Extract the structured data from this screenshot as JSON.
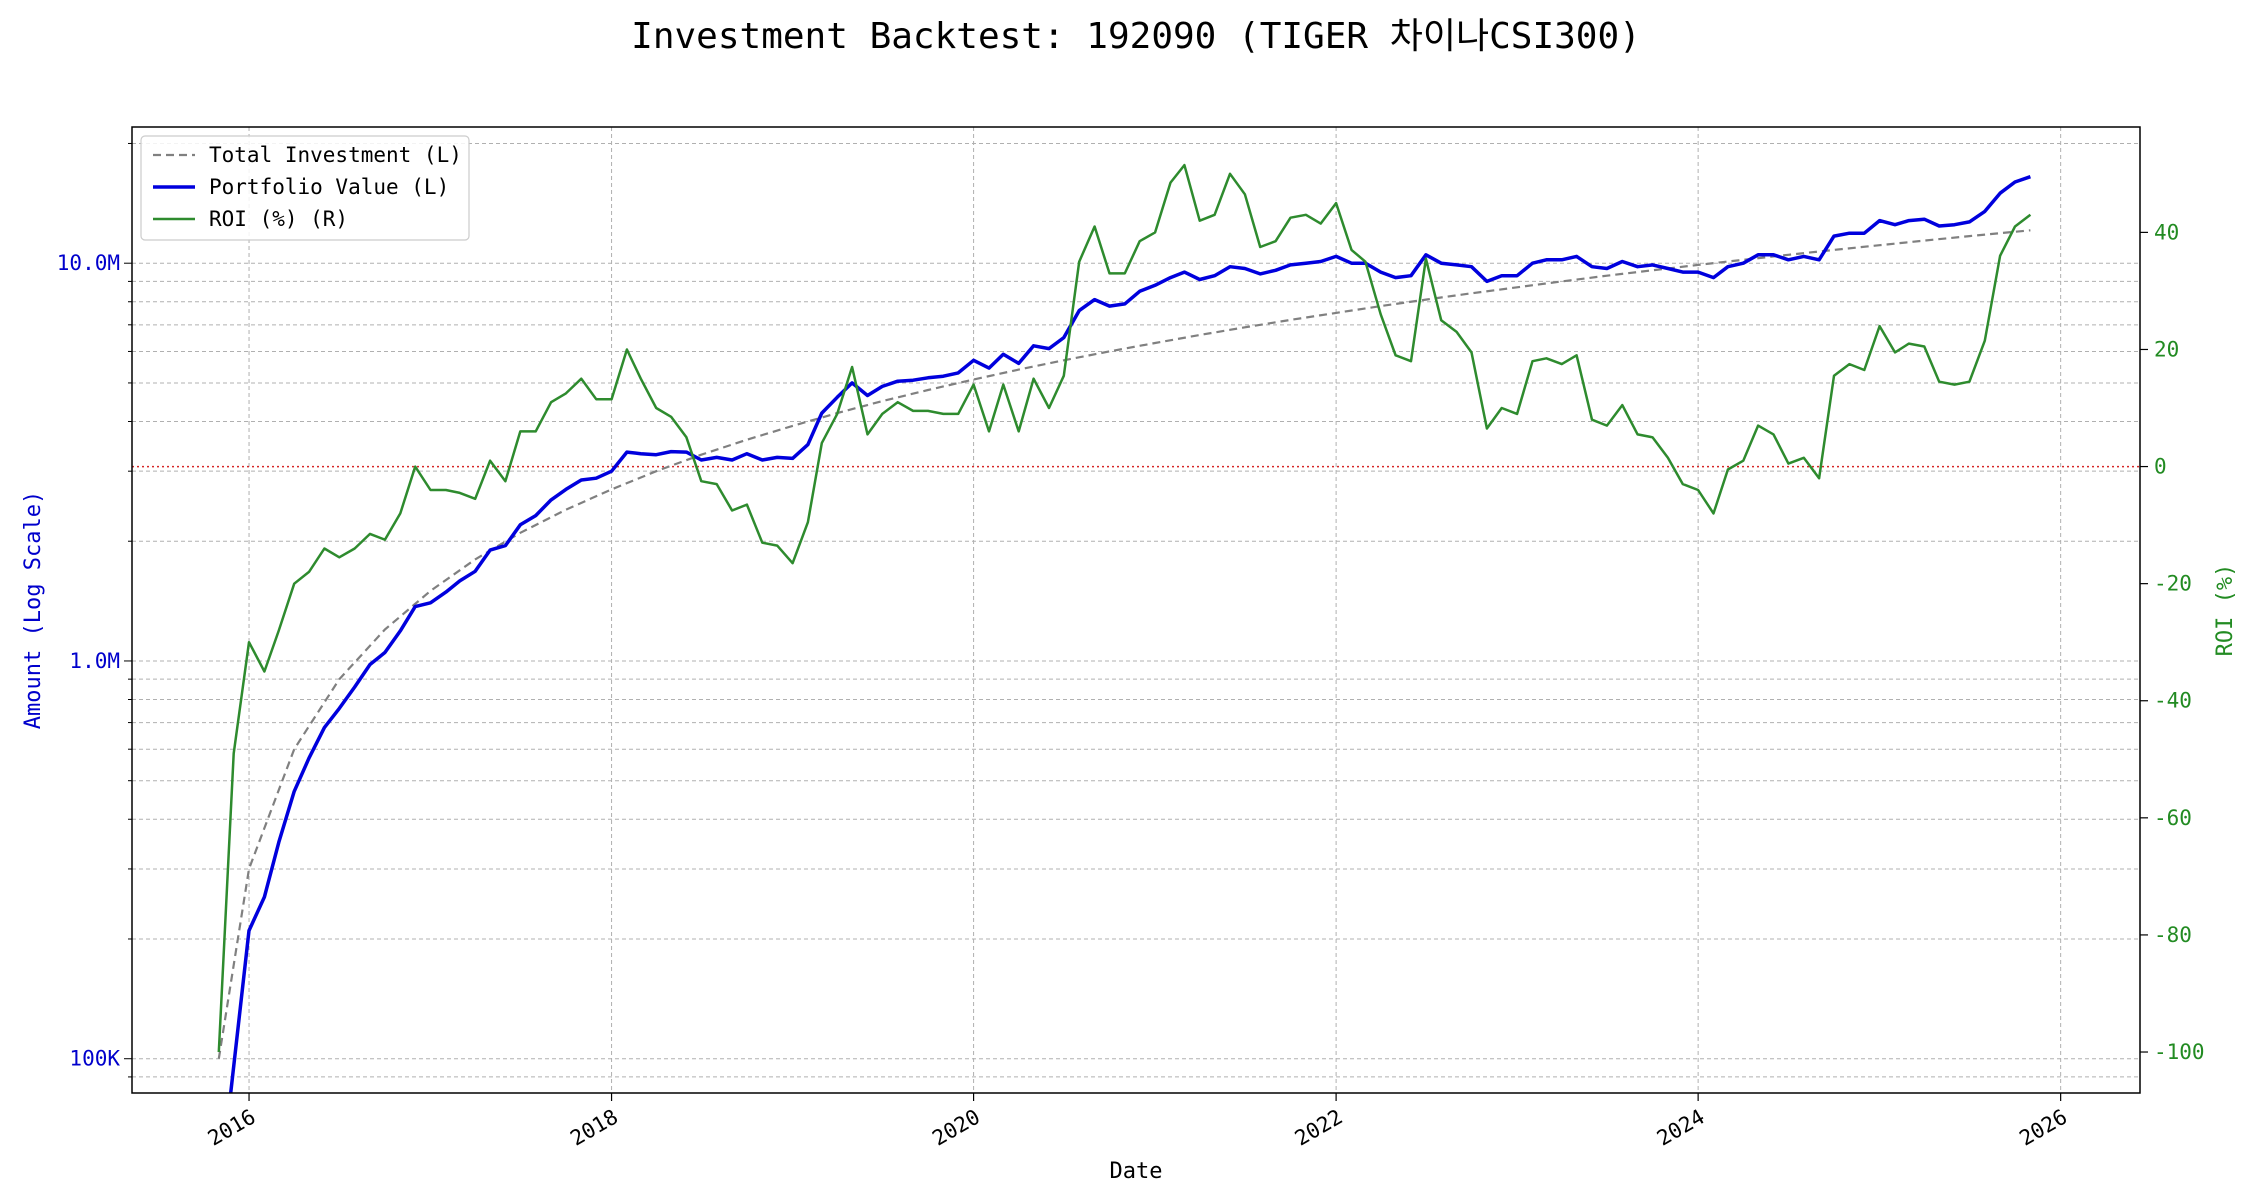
{
  "chart_data": {
    "type": "line",
    "title": "Investment Backtest: 192090 (TIGER 차이나CSI300)",
    "xlabel": "Date",
    "ylabel_left": "Amount (Log Scale)",
    "ylabel_right": "ROI (%)",
    "x_ticks": [
      "2016",
      "2018",
      "2020",
      "2022",
      "2024",
      "2026"
    ],
    "y_left_ticks": [
      "100K",
      "1.0M",
      "10.0M"
    ],
    "y_right_ticks": [
      "-100",
      "-80",
      "-60",
      "-40",
      "-20",
      "0",
      "20",
      "40"
    ],
    "x_range": [
      "2015-05-10",
      "2026-06-10"
    ],
    "y_left_range": [
      82000,
      22000000
    ],
    "y_left_scale": "log",
    "y_right_range": [
      -107,
      58
    ],
    "grid": true,
    "legend_position": "top-left",
    "reference_line": {
      "axis": "right",
      "value": 0,
      "color": "#d62728",
      "style": "dotted"
    },
    "colors": {
      "left_axis": "#0000cc",
      "right_axis": "#228b22",
      "grid": "#b0b0b0"
    },
    "series": [
      {
        "name": "Total Investment (L)",
        "axis": "left",
        "color": "#808080",
        "style": "dashed",
        "x": [
          "2015-11-01",
          "2016-01-01",
          "2016-04-01",
          "2016-07-01",
          "2016-10-01",
          "2017-01-01",
          "2017-04-01",
          "2017-07-01",
          "2017-10-01",
          "2018-01-01",
          "2018-04-01",
          "2018-07-01",
          "2018-10-01",
          "2019-01-01",
          "2019-04-01",
          "2019-07-01",
          "2019-10-01",
          "2020-01-01",
          "2020-04-01",
          "2020-07-01",
          "2020-10-01",
          "2021-01-01",
          "2021-04-01",
          "2021-07-01",
          "2021-10-01",
          "2022-01-01",
          "2022-04-01",
          "2022-07-01",
          "2022-10-01",
          "2023-01-01",
          "2023-04-01",
          "2023-07-01",
          "2023-10-01",
          "2024-01-01",
          "2024-04-01",
          "2024-07-01",
          "2024-10-01",
          "2025-01-01",
          "2025-04-01",
          "2025-07-01",
          "2025-11-01"
        ],
        "values": [
          100000,
          300000,
          600000,
          900000,
          1200000,
          1500000,
          1800000,
          2100000,
          2400000,
          2700000,
          3000000,
          3300000,
          3600000,
          3900000,
          4200000,
          4500000,
          4800000,
          5100000,
          5400000,
          5700000,
          6000000,
          6300000,
          6600000,
          6900000,
          7200000,
          7500000,
          7800000,
          8100000,
          8400000,
          8700000,
          9000000,
          9300000,
          9600000,
          9900000,
          10200000,
          10500000,
          10800000,
          11100000,
          11400000,
          11700000,
          12100000
        ]
      },
      {
        "name": "Portfolio Value (L)",
        "axis": "left",
        "color": "#0000dd",
        "style": "solid",
        "x": [
          "2015-11-25",
          "2016-01-01",
          "2016-02-01",
          "2016-03-01",
          "2016-04-01",
          "2016-05-01",
          "2016-06-01",
          "2016-07-01",
          "2016-08-01",
          "2016-09-01",
          "2016-10-01",
          "2016-11-01",
          "2016-12-01",
          "2017-01-01",
          "2017-02-01",
          "2017-03-01",
          "2017-04-01",
          "2017-05-01",
          "2017-06-01",
          "2017-07-01",
          "2017-08-01",
          "2017-09-01",
          "2017-10-01",
          "2017-11-01",
          "2017-12-01",
          "2018-01-01",
          "2018-02-01",
          "2018-03-01",
          "2018-04-01",
          "2018-05-01",
          "2018-06-01",
          "2018-07-01",
          "2018-08-01",
          "2018-09-01",
          "2018-10-01",
          "2018-11-01",
          "2018-12-01",
          "2019-01-01",
          "2019-02-01",
          "2019-03-01",
          "2019-04-01",
          "2019-05-01",
          "2019-06-01",
          "2019-07-01",
          "2019-08-01",
          "2019-09-01",
          "2019-10-01",
          "2019-11-01",
          "2019-12-01",
          "2020-01-01",
          "2020-02-01",
          "2020-03-01",
          "2020-04-01",
          "2020-05-01",
          "2020-06-01",
          "2020-07-01",
          "2020-08-01",
          "2020-09-01",
          "2020-10-01",
          "2020-11-01",
          "2020-12-01",
          "2021-01-01",
          "2021-02-01",
          "2021-03-01",
          "2021-04-01",
          "2021-05-01",
          "2021-06-01",
          "2021-07-01",
          "2021-08-01",
          "2021-09-01",
          "2021-10-01",
          "2021-11-01",
          "2021-12-01",
          "2022-01-01",
          "2022-02-01",
          "2022-03-01",
          "2022-04-01",
          "2022-05-01",
          "2022-06-01",
          "2022-07-01",
          "2022-08-01",
          "2022-09-01",
          "2022-10-01",
          "2022-11-01",
          "2022-12-01",
          "2023-01-01",
          "2023-02-01",
          "2023-03-01",
          "2023-04-01",
          "2023-05-01",
          "2023-06-01",
          "2023-07-01",
          "2023-08-01",
          "2023-09-01",
          "2023-10-01",
          "2023-11-01",
          "2023-12-01",
          "2024-01-01",
          "2024-02-01",
          "2024-03-01",
          "2024-04-01",
          "2024-05-01",
          "2024-06-01",
          "2024-07-01",
          "2024-08-01",
          "2024-09-01",
          "2024-10-01",
          "2024-11-01",
          "2024-12-01",
          "2025-01-01",
          "2025-02-01",
          "2025-03-01",
          "2025-04-01",
          "2025-05-01",
          "2025-06-01",
          "2025-07-01",
          "2025-08-01",
          "2025-09-01",
          "2025-10-01",
          "2025-11-01"
        ],
        "values": [
          82000,
          210000,
          255000,
          350000,
          470000,
          570000,
          680000,
          760000,
          860000,
          980000,
          1050000,
          1190000,
          1370000,
          1400000,
          1490000,
          1590000,
          1680000,
          1900000,
          1950000,
          2200000,
          2320000,
          2540000,
          2700000,
          2850000,
          2880000,
          3000000,
          3350000,
          3320000,
          3300000,
          3360000,
          3350000,
          3200000,
          3250000,
          3200000,
          3320000,
          3200000,
          3250000,
          3230000,
          3500000,
          4200000,
          4600000,
          5000000,
          4650000,
          4900000,
          5050000,
          5080000,
          5150000,
          5200000,
          5300000,
          5700000,
          5450000,
          5900000,
          5600000,
          6200000,
          6100000,
          6500000,
          7600000,
          8100000,
          7800000,
          7900000,
          8500000,
          8800000,
          9200000,
          9500000,
          9100000,
          9300000,
          9800000,
          9700000,
          9400000,
          9600000,
          9900000,
          10000000,
          10100000,
          10400000,
          10000000,
          10000000,
          9500000,
          9200000,
          9300000,
          10500000,
          10000000,
          9900000,
          9800000,
          9000000,
          9300000,
          9300000,
          10000000,
          10200000,
          10200000,
          10400000,
          9800000,
          9700000,
          10100000,
          9800000,
          9900000,
          9700000,
          9500000,
          9500000,
          9200000,
          9800000,
          10000000,
          10500000,
          10500000,
          10200000,
          10400000,
          10200000,
          11700000,
          11900000,
          11900000,
          12800000,
          12500000,
          12800000,
          12900000,
          12400000,
          12500000,
          12700000,
          13500000,
          15000000,
          16000000,
          16500000
        ]
      },
      {
        "name": "ROI (%) (R)",
        "axis": "right",
        "color": "#2e8b2e",
        "style": "solid",
        "x": [
          "2015-11-01",
          "2015-12-01",
          "2016-01-01",
          "2016-02-01",
          "2016-03-01",
          "2016-04-01",
          "2016-05-01",
          "2016-06-01",
          "2016-07-01",
          "2016-08-01",
          "2016-09-01",
          "2016-10-01",
          "2016-11-01",
          "2016-12-01",
          "2017-01-01",
          "2017-02-01",
          "2017-03-01",
          "2017-04-01",
          "2017-05-01",
          "2017-06-01",
          "2017-07-01",
          "2017-08-01",
          "2017-09-01",
          "2017-10-01",
          "2017-11-01",
          "2017-12-01",
          "2018-01-01",
          "2018-02-01",
          "2018-03-01",
          "2018-04-01",
          "2018-05-01",
          "2018-06-01",
          "2018-07-01",
          "2018-08-01",
          "2018-09-01",
          "2018-10-01",
          "2018-11-01",
          "2018-12-01",
          "2019-01-01",
          "2019-02-01",
          "2019-03-01",
          "2019-04-01",
          "2019-05-01",
          "2019-06-01",
          "2019-07-01",
          "2019-08-01",
          "2019-09-01",
          "2019-10-01",
          "2019-11-01",
          "2019-12-01",
          "2020-01-01",
          "2020-02-01",
          "2020-03-01",
          "2020-04-01",
          "2020-05-01",
          "2020-06-01",
          "2020-07-01",
          "2020-08-01",
          "2020-09-01",
          "2020-10-01",
          "2020-11-01",
          "2020-12-01",
          "2021-01-01",
          "2021-02-01",
          "2021-03-01",
          "2021-04-01",
          "2021-05-01",
          "2021-06-01",
          "2021-07-01",
          "2021-08-01",
          "2021-09-01",
          "2021-10-01",
          "2021-11-01",
          "2021-12-01",
          "2022-01-01",
          "2022-02-01",
          "2022-03-01",
          "2022-04-01",
          "2022-05-01",
          "2022-06-01",
          "2022-07-01",
          "2022-08-01",
          "2022-09-01",
          "2022-10-01",
          "2022-11-01",
          "2022-12-01",
          "2023-01-01",
          "2023-02-01",
          "2023-03-01",
          "2023-04-01",
          "2023-05-01",
          "2023-06-01",
          "2023-07-01",
          "2023-08-01",
          "2023-09-01",
          "2023-10-01",
          "2023-11-01",
          "2023-12-01",
          "2024-01-01",
          "2024-02-01",
          "2024-03-01",
          "2024-04-01",
          "2024-05-01",
          "2024-06-01",
          "2024-07-01",
          "2024-08-01",
          "2024-09-01",
          "2024-10-01",
          "2024-11-01",
          "2024-12-01",
          "2025-01-01",
          "2025-02-01",
          "2025-03-01",
          "2025-04-01",
          "2025-05-01",
          "2025-06-01",
          "2025-07-01",
          "2025-08-01",
          "2025-09-01",
          "2025-10-01",
          "2025-11-01"
        ],
        "values": [
          -100,
          -49,
          -30,
          -35,
          -28,
          -20,
          -18,
          -14,
          -15.5,
          -14,
          -11.5,
          -12.5,
          -8,
          0,
          -4,
          -4,
          -4.5,
          -5.5,
          1,
          -2.5,
          6,
          6,
          11,
          12.5,
          15,
          11.5,
          11.5,
          20,
          15,
          10,
          8.5,
          5,
          -2.5,
          -3,
          -7.5,
          -6.5,
          -13,
          -13.5,
          -16.5,
          -9.5,
          4,
          9,
          17,
          5.5,
          9,
          11,
          9.5,
          9.5,
          9,
          9,
          14,
          6,
          14,
          6,
          15,
          10,
          15.5,
          35,
          41,
          33,
          33,
          38.5,
          40,
          48.5,
          51.5,
          42,
          43,
          50,
          46.5,
          37.5,
          38.5,
          42.5,
          43,
          41.5,
          45,
          37,
          35,
          26,
          19,
          18,
          35.5,
          25,
          23,
          19.5,
          6.5,
          10,
          9,
          18,
          18.5,
          17.5,
          19,
          8,
          7,
          10.5,
          5.5,
          5,
          1.5,
          -3,
          -4,
          -8,
          -0.5,
          1,
          7,
          5.5,
          0.5,
          1.5,
          -2,
          15.5,
          17.5,
          16.5,
          24,
          19.5,
          21,
          20.5,
          14.5,
          14,
          14.5,
          21.5,
          36,
          41,
          43
        ]
      }
    ]
  }
}
